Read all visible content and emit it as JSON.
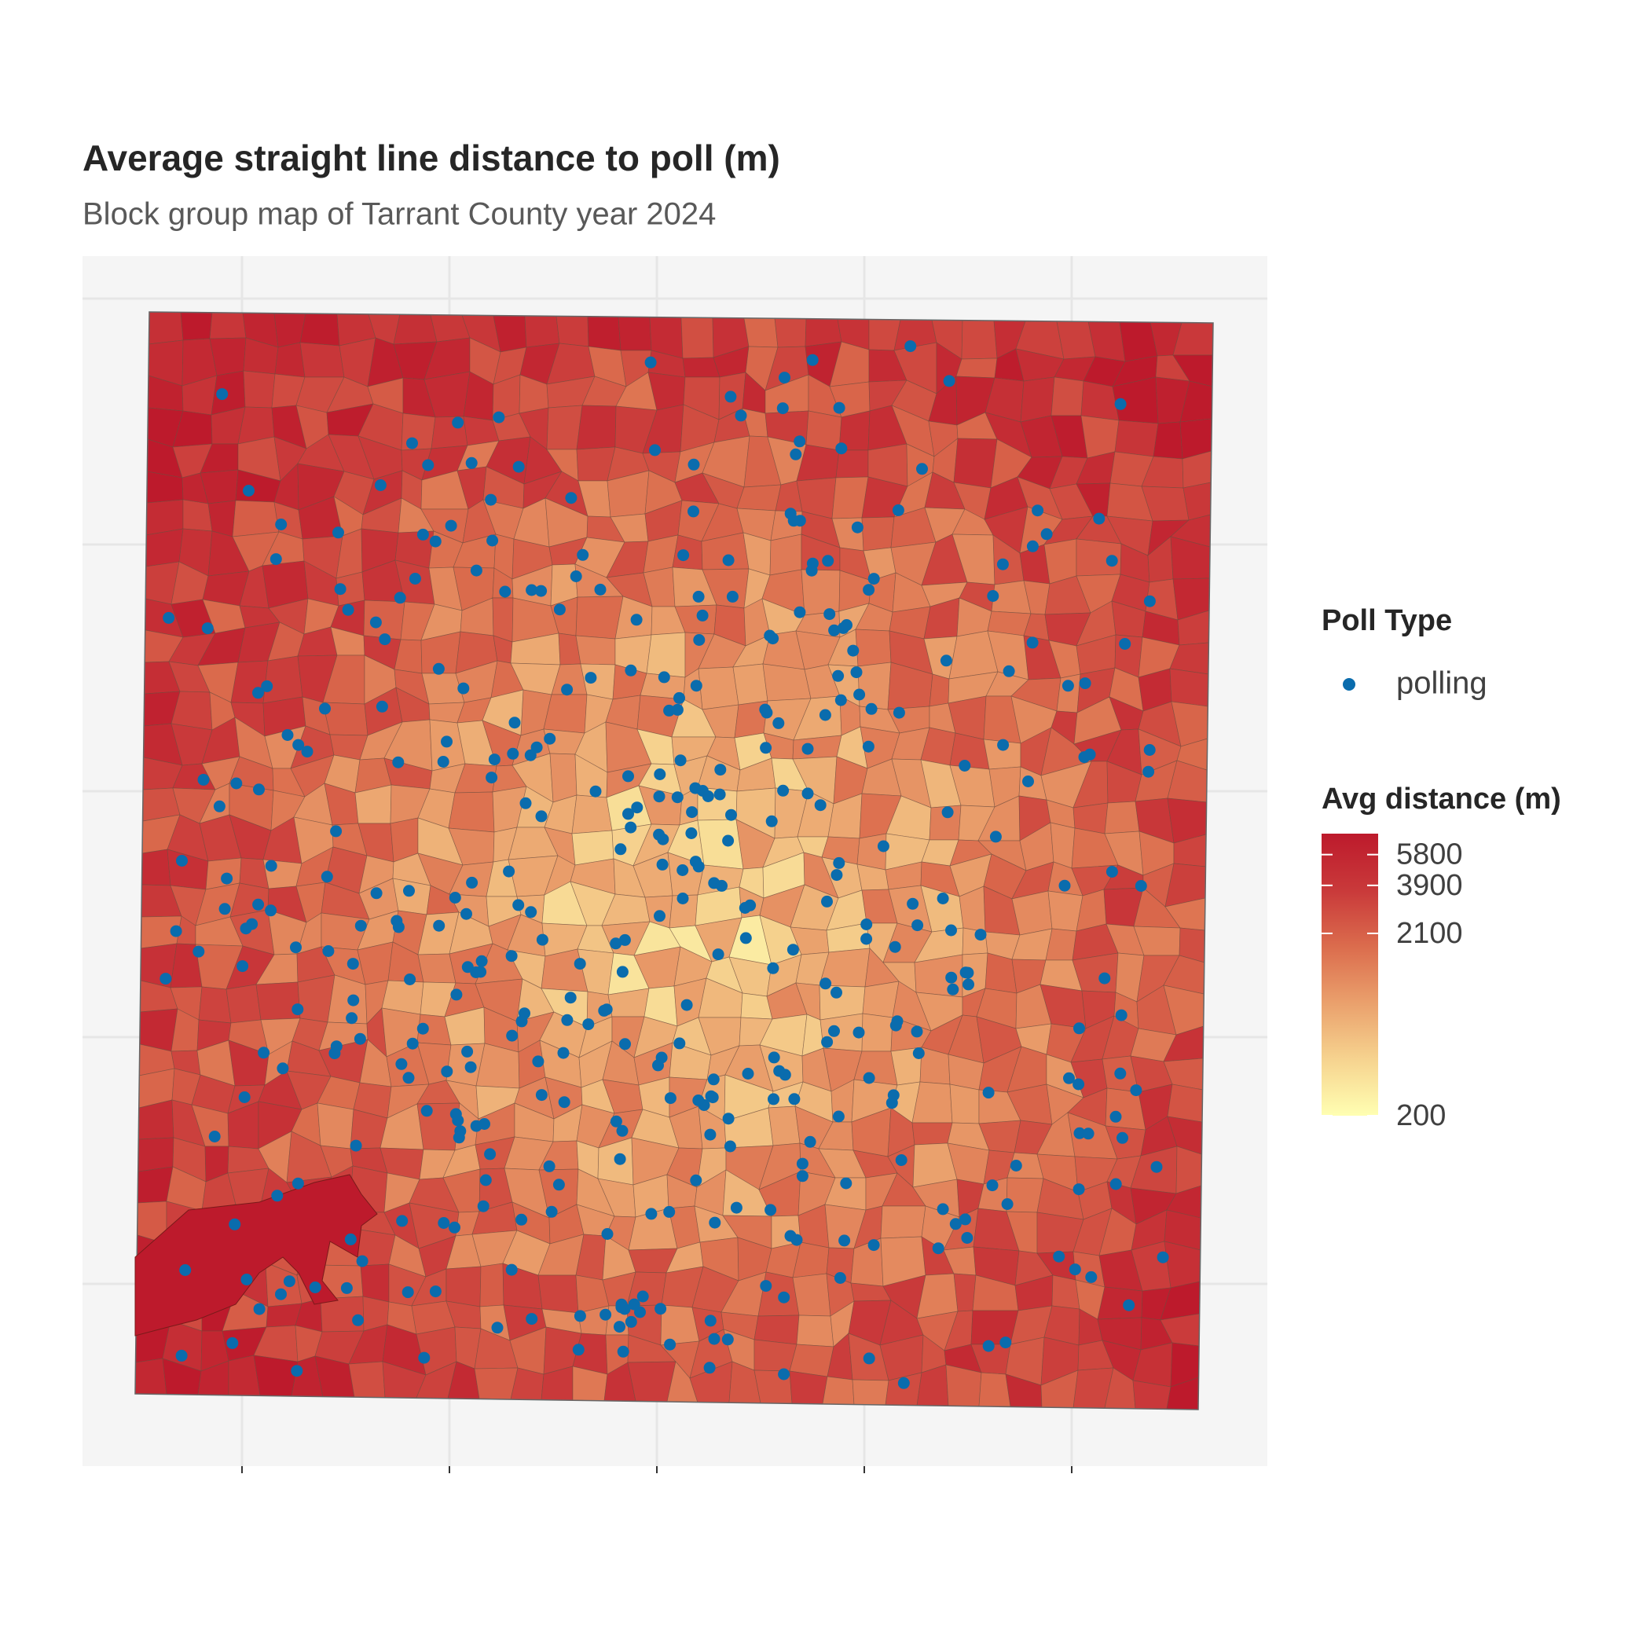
{
  "chart_data": {
    "type": "choropleth",
    "title": "Average straight line distance to poll (m)",
    "subtitle": "Block group map of Tarrant County year 2024",
    "grid": true,
    "points_legend": {
      "title": "Poll Type",
      "items": [
        {
          "name": "polling",
          "color": "#0a6cad"
        }
      ]
    },
    "color_legend": {
      "title": "Avg distance (m)",
      "scale": "log",
      "lim": [
        200,
        7600
      ],
      "ticks": [
        5800,
        3900,
        2100,
        200
      ],
      "colors": [
        "#ffffb2",
        "#f6d38f",
        "#eaa06c",
        "#db6c4d",
        "#c9393a",
        "#bd1a2c"
      ]
    }
  }
}
